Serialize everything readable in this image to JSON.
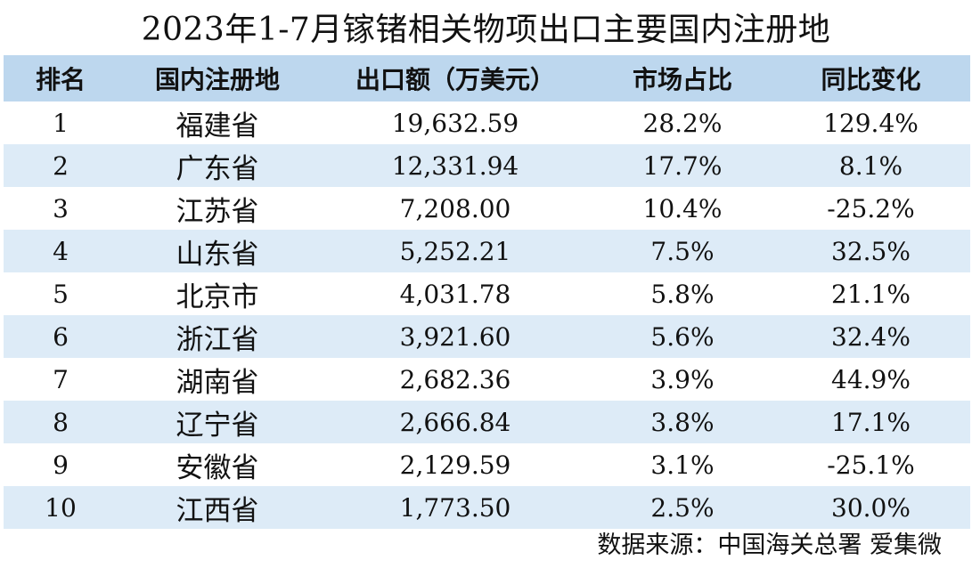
{
  "chart_data": {
    "type": "table",
    "title": "2023年1-7月镓锗相关物项出口主要国内注册地",
    "columns": [
      "排名",
      "国内注册地",
      "出口额（万美元）",
      "市场占比",
      "同比变化"
    ],
    "rows": [
      {
        "rank": "1",
        "region": "福建省",
        "exports": "19,632.59",
        "share": "28.2%",
        "yoy": "129.4%"
      },
      {
        "rank": "2",
        "region": "广东省",
        "exports": "12,331.94",
        "share": "17.7%",
        "yoy": "8.1%"
      },
      {
        "rank": "3",
        "region": "江苏省",
        "exports": "7,208.00",
        "share": "10.4%",
        "yoy": "-25.2%"
      },
      {
        "rank": "4",
        "region": "山东省",
        "exports": "5,252.21",
        "share": "7.5%",
        "yoy": "32.5%"
      },
      {
        "rank": "5",
        "region": "北京市",
        "exports": "4,031.78",
        "share": "5.8%",
        "yoy": "21.1%"
      },
      {
        "rank": "6",
        "region": "浙江省",
        "exports": "3,921.60",
        "share": "5.6%",
        "yoy": "32.4%"
      },
      {
        "rank": "7",
        "region": "湖南省",
        "exports": "2,682.36",
        "share": "3.9%",
        "yoy": "44.9%"
      },
      {
        "rank": "8",
        "region": "辽宁省",
        "exports": "2,666.84",
        "share": "3.8%",
        "yoy": "17.1%"
      },
      {
        "rank": "9",
        "region": "安徽省",
        "exports": "2,129.59",
        "share": "3.1%",
        "yoy": "-25.1%"
      },
      {
        "rank": "10",
        "region": "江西省",
        "exports": "1,773.50",
        "share": "2.5%",
        "yoy": "30.0%"
      }
    ],
    "source": "数据来源：中国海关总署 爱集微",
    "colors": {
      "header_bg": "#bdd7ee",
      "stripe_bg": "#ddebf7",
      "row_bg": "#ffffff"
    }
  }
}
